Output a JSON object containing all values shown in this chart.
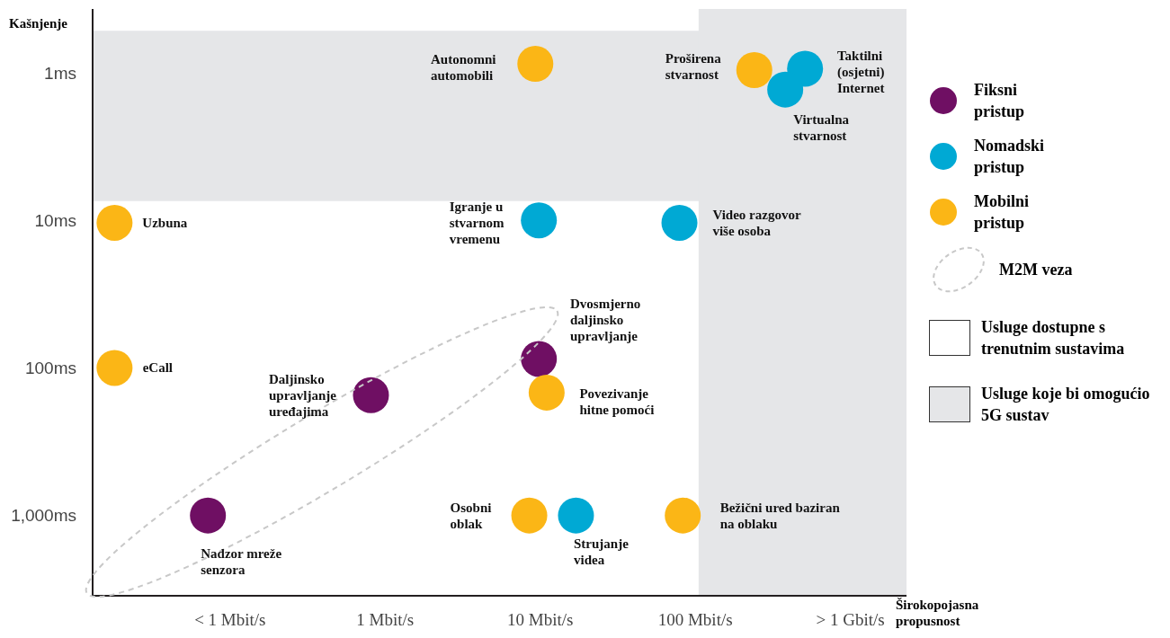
{
  "chart_data": {
    "type": "scatter",
    "xlabel": "Širokopojasna propusnost",
    "ylabel": "Kašnjenje",
    "log": "xy",
    "xlim": [
      0.013,
      2300
    ],
    "xticks": [
      {
        "value": 0.1,
        "label": "< 1 Mbit/s"
      },
      {
        "value": 1,
        "label": "1 Mbit/s"
      },
      {
        "value": 10,
        "label": "10 Mbit/s"
      },
      {
        "value": 100,
        "label": "100 Mbit/s"
      },
      {
        "value": 1000,
        "label": "> 1 Gbit/s"
      }
    ],
    "ylim": [
      3500,
      0.37
    ],
    "yticks": [
      {
        "value": 1,
        "label": "1ms"
      },
      {
        "value": 10,
        "label": "10ms"
      },
      {
        "value": 100,
        "label": "100ms"
      },
      {
        "value": 1000,
        "label": "1,000ms"
      }
    ],
    "legend": "right",
    "marker": "circle",
    "series": [
      {
        "name": "Fiksni pristup",
        "color": "#6f0f63",
        "x": [
          9.8,
          0.81,
          0.072
        ],
        "values": [
          87,
          153,
          1000
        ]
      },
      {
        "name": "Nomadski pristup",
        "color": "#00a9d4",
        "x": [
          510,
          380,
          9.8,
          79,
          17
        ],
        "values": [
          0.94,
          1.3,
          10,
          10.4,
          1000
        ]
      },
      {
        "name": "Mobilni pristup",
        "color": "#fbb616",
        "x": [
          9.3,
          240,
          0.018,
          0.018,
          11,
          8.5,
          83
        ],
        "values": [
          0.87,
          0.96,
          10.4,
          100,
          147,
          1000,
          1000
        ]
      }
    ],
    "bands": [
      {
        "axis": "y",
        "from": 7.4,
        "to": 0.52,
        "color": "#e5e6e8",
        "label": "Usluge koje bi omogućio 5G sustav"
      },
      {
        "axis": "x",
        "from": 105,
        "to": 2300,
        "color": "#e5e6e8"
      }
    ],
    "annotations": [
      "M2M veza",
      "Usluge dostupne s trenutnim sustavima",
      {
        "text": "Autonomni\nautomobili",
        "x": 9.3,
        "y": 0.87
      },
      {
        "text": "Proširena\nstvarnost",
        "x": 240,
        "y": 0.96
      },
      {
        "text": "Taktilni\n(osjetni)\nInternet",
        "x": 510,
        "y": 0.94
      },
      {
        "text": "Virtualna\nstvarnost",
        "x": 380,
        "y": 1.3
      },
      {
        "text": "Uzbuna",
        "x": 0.018,
        "y": 10.4
      },
      {
        "text": "Igranje u\nstvarnom\nvremenu",
        "x": 9.8,
        "y": 10
      },
      {
        "text": "Video razgovor\nviše osoba",
        "x": 79,
        "y": 10.4
      },
      {
        "text": "Dvosmjerno\ndaljinsko\nupravljanje",
        "x": 9.8,
        "y": 87
      },
      {
        "text": "eCall",
        "x": 0.018,
        "y": 100
      },
      {
        "text": "Daljinsko\nupravljanje\nuređajima",
        "x": 0.81,
        "y": 153
      },
      {
        "text": "Povezivanje\nhitne pomoći",
        "x": 11,
        "y": 147
      },
      {
        "text": "Osobni\noblak",
        "x": 8.5,
        "y": 1000
      },
      {
        "text": "Strujanje\nvidea",
        "x": 17,
        "y": 1000
      },
      {
        "text": "Bežični ured baziran\nna oblaku",
        "x": 83,
        "y": 1000
      },
      {
        "text": "Nadzor mreže\nsenzora",
        "x": 0.072,
        "y": 1000
      }
    ]
  }
}
